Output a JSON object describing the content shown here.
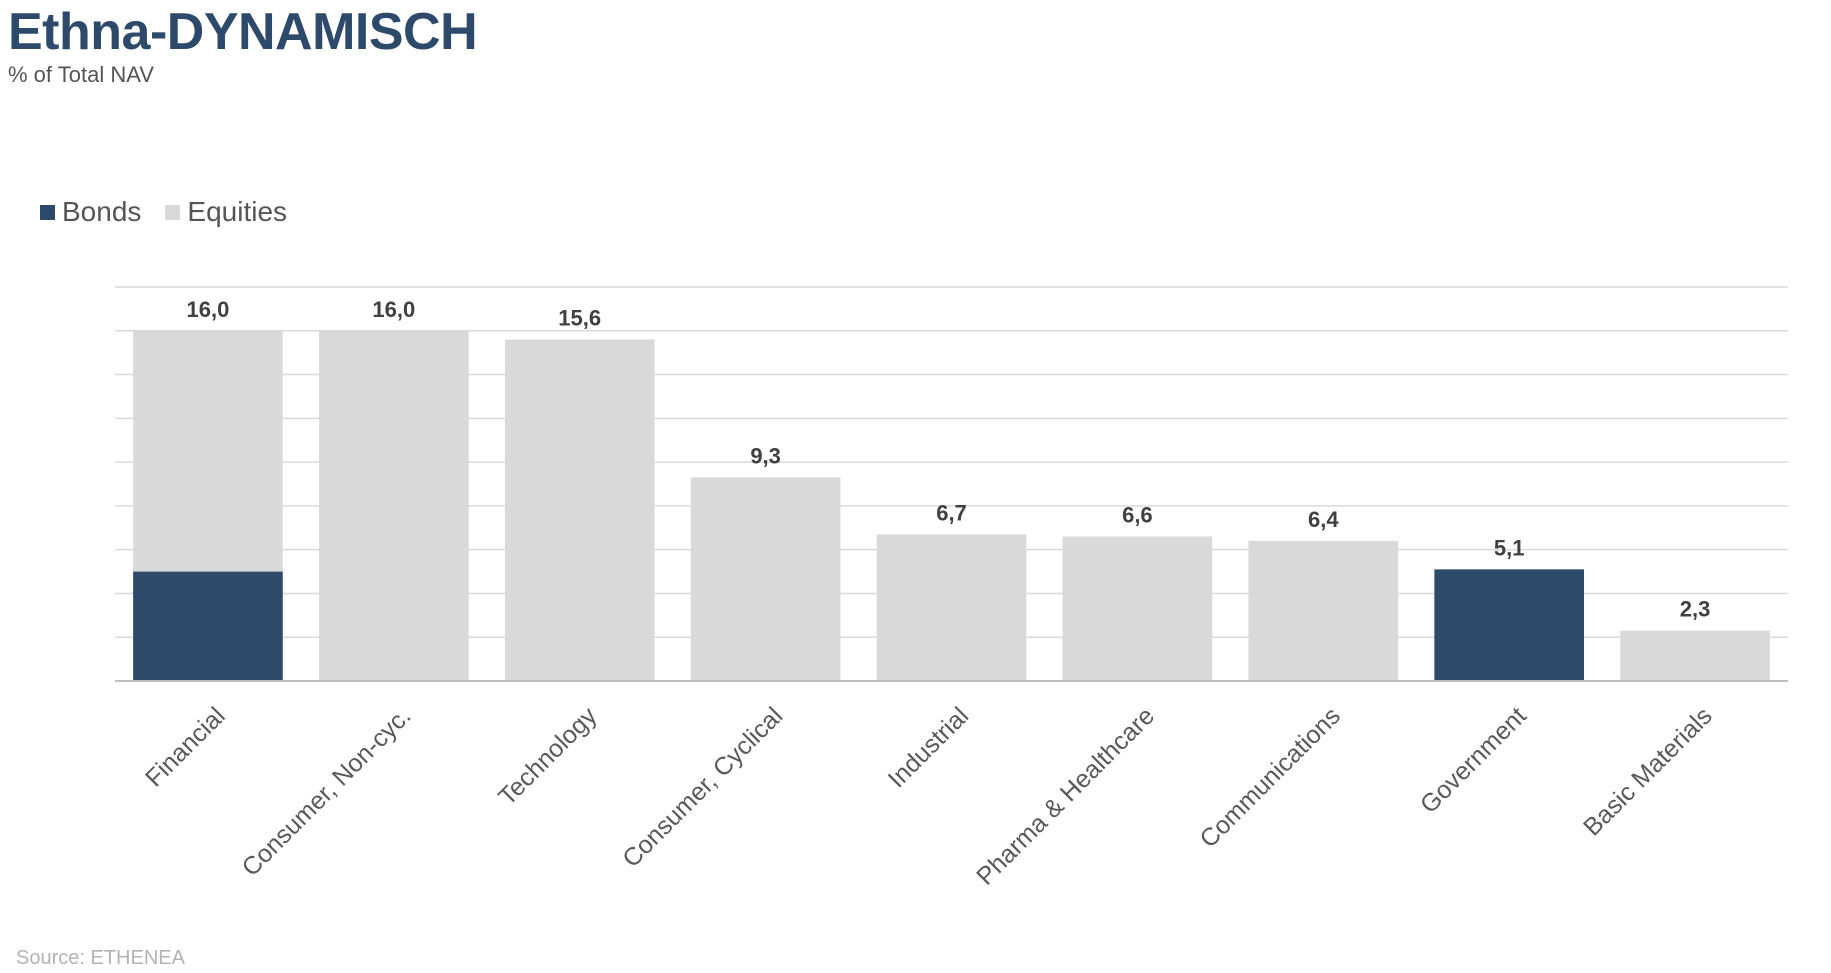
{
  "header": {
    "title": "Ethna-DYNAMISCH",
    "subtitle": "% of Total NAV"
  },
  "legend": {
    "bonds_label": "Bonds",
    "equities_label": "Equities"
  },
  "footer": {
    "source": "Source: ETHENEA"
  },
  "colors": {
    "bonds": "#2d4a6b",
    "equities": "#d9d9d9",
    "grid": "#d9d9d9",
    "axis": "#bfbfbf",
    "label": "#404040"
  },
  "chart_data": {
    "type": "bar",
    "stacked": true,
    "title": "Ethna-DYNAMISCH",
    "subtitle": "% of Total NAV",
    "categories": [
      "Financial",
      "Consumer, Non-cyc.",
      "Technology",
      "Consumer, Cyclical",
      "Industrial",
      "Pharma & Healthcare",
      "Communications",
      "Government",
      "Basic Materials"
    ],
    "series": [
      {
        "name": "Bonds",
        "values": [
          5.0,
          0,
          0,
          0,
          0,
          0,
          0,
          5.1,
          0
        ]
      },
      {
        "name": "Equities",
        "values": [
          11.0,
          16.0,
          15.6,
          9.3,
          6.7,
          6.6,
          6.4,
          0,
          2.3
        ]
      }
    ],
    "totals": [
      "16,0",
      "16,0",
      "15,6",
      "9,3",
      "6,7",
      "6,6",
      "6,4",
      "5,1",
      "2,3"
    ],
    "ylim": [
      0,
      18
    ],
    "grid_step": 2,
    "grid": true,
    "y_tick_labels": false,
    "legend_position": "top-left"
  }
}
